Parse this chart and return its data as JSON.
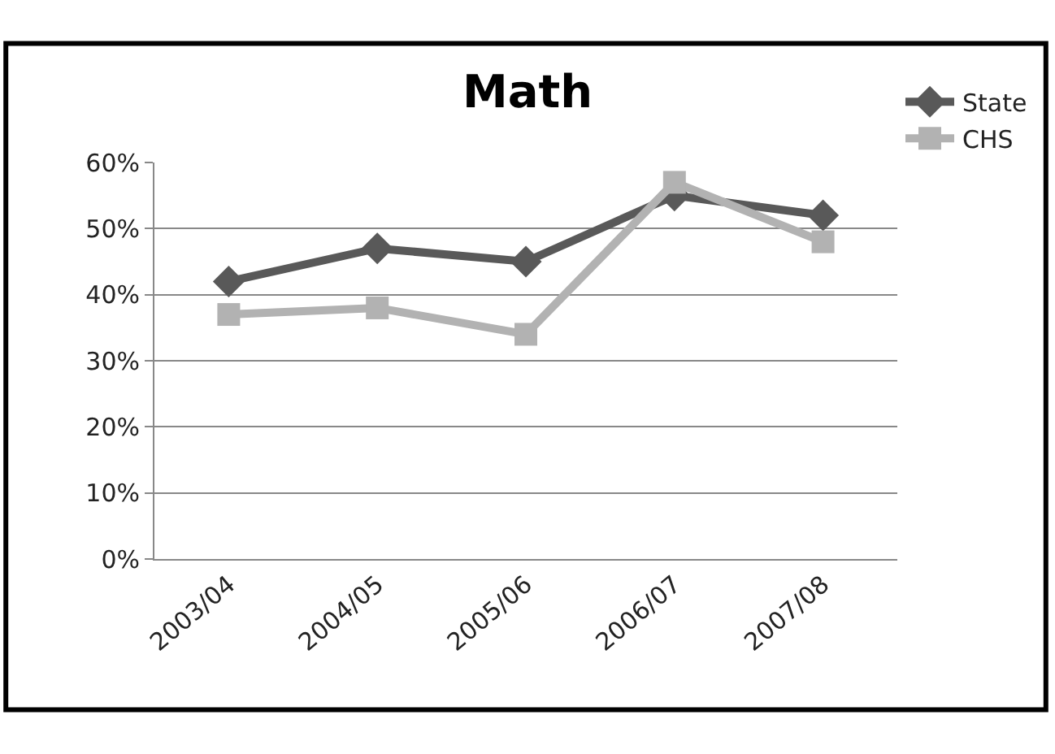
{
  "chart_data": {
    "type": "line",
    "title": "Math",
    "categories": [
      "2003/04",
      "2004/05",
      "2005/06",
      "2006/07",
      "2007/08"
    ],
    "series": [
      {
        "name": "State",
        "color": "#595959",
        "marker": "diamond",
        "values": [
          42,
          47,
          45,
          55,
          52
        ]
      },
      {
        "name": "CHS",
        "color": "#b2b2b2",
        "marker": "square",
        "values": [
          37,
          38,
          34,
          57,
          48
        ]
      }
    ],
    "ylim": [
      0,
      60
    ],
    "yticks": [
      {
        "value": 0,
        "label": "0%"
      },
      {
        "value": 10,
        "label": "10%"
      },
      {
        "value": 20,
        "label": "20%"
      },
      {
        "value": 30,
        "label": "30%"
      },
      {
        "value": 40,
        "label": "40%"
      },
      {
        "value": 50,
        "label": "50%"
      },
      {
        "value": 60,
        "label": "60%"
      }
    ],
    "grid": "y",
    "legend": "top right"
  }
}
